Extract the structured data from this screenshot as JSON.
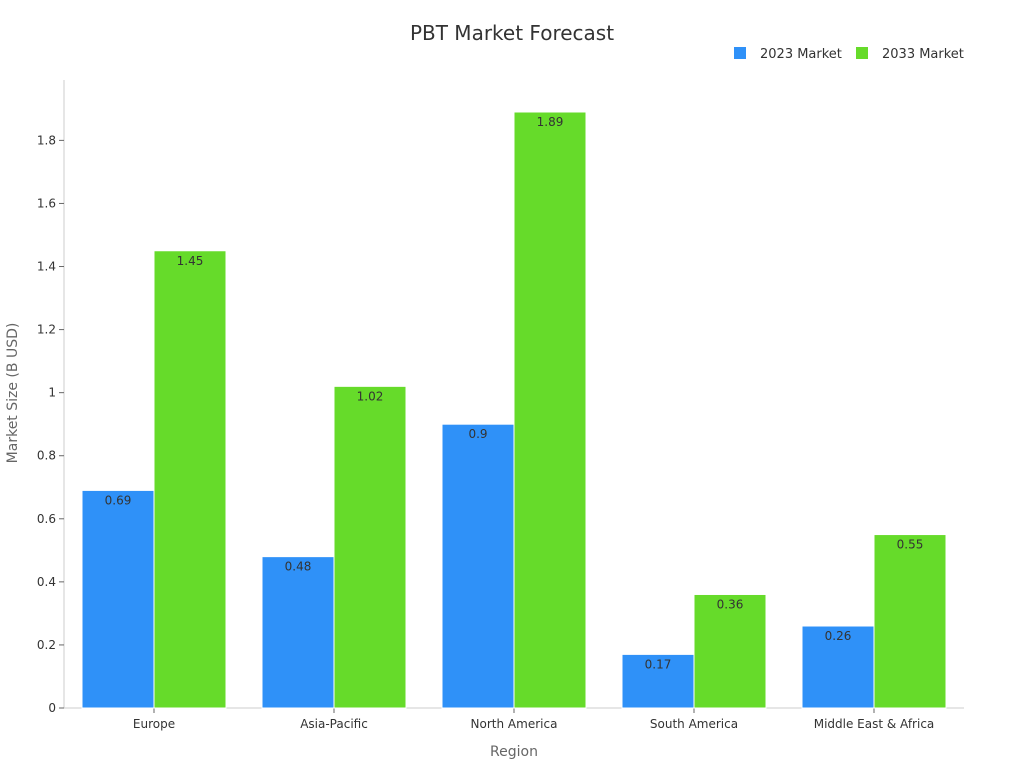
{
  "chart_data": {
    "type": "bar",
    "title": "PBT Market Forecast",
    "xlabel": "Region",
    "ylabel": "Market Size (B USD)",
    "categories": [
      "Europe",
      "Asia-Pacific",
      "North America",
      "South America",
      "Middle East & Africa"
    ],
    "series": [
      {
        "name": "2023 Market",
        "color": "#2f91f8",
        "values": [
          0.69,
          0.48,
          0.9,
          0.17,
          0.26
        ]
      },
      {
        "name": "2033 Market",
        "color": "#66db2a",
        "values": [
          1.45,
          1.02,
          1.89,
          0.36,
          0.55
        ]
      }
    ],
    "ylim": [
      0,
      1.9
    ],
    "yticks": [
      0,
      0.2,
      0.4,
      0.6,
      0.8,
      1,
      1.2,
      1.4,
      1.6,
      1.8
    ],
    "ytick_labels": [
      "0",
      "0.2",
      "0.4",
      "0.6",
      "0.8",
      "1",
      "1.2",
      "1.4",
      "1.6",
      "1.8"
    ],
    "data_labels": [
      [
        "0.69",
        "0.48",
        "0.9",
        "0.17",
        "0.26"
      ],
      [
        "1.45",
        "1.02",
        "1.89",
        "0.36",
        "0.55"
      ]
    ],
    "grid": false,
    "legend_position": "top-right"
  }
}
